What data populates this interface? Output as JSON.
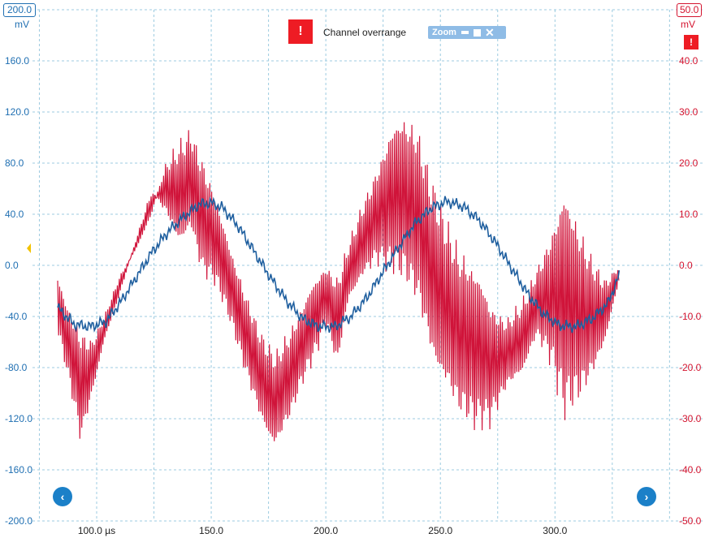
{
  "banner": {
    "message": "Channel overrange",
    "alert_symbol": "!"
  },
  "zoom": {
    "label": "Zoom"
  },
  "left_axis": {
    "scale_badge": "200.0",
    "unit": "mV"
  },
  "right_axis": {
    "scale_badge": "50.0",
    "unit": "mV",
    "warning_symbol": "!"
  },
  "nav": {
    "prev": "‹",
    "next": "›"
  },
  "colors": {
    "channel_a": "#1f5f9f",
    "channel_b": "#d0143a",
    "grid": "#9ccbe0"
  },
  "chart_data": {
    "type": "line",
    "x_unit": "µs",
    "x_ticks": [
      "100.0 µs",
      "150.0",
      "200.0",
      "250.0",
      "300.0"
    ],
    "x_tick_values": [
      100,
      150,
      200,
      250,
      300
    ],
    "xlim": [
      72,
      352
    ],
    "left_ticks": [
      "200.0",
      "160.0",
      "120.0",
      "80.0",
      "40.0",
      "0.0",
      "-40.0",
      "-80.0",
      "-120.0",
      "-160.0",
      "-200.0"
    ],
    "right_ticks": [
      "50.0",
      "40.0",
      "30.0",
      "20.0",
      "10.0",
      "0.0",
      "-10.0",
      "-20.0",
      "-30.0",
      "-40.0",
      "-50.0"
    ],
    "ylim_left": [
      -200,
      200
    ],
    "ylim_right": [
      -50,
      50
    ],
    "grid": true,
    "series": [
      {
        "channel": "A",
        "axis": "left",
        "color": "#1f5f9f",
        "points": [
          [
            83,
            -33
          ],
          [
            90,
            -46
          ],
          [
            97,
            -48
          ],
          [
            104,
            -44
          ],
          [
            110,
            -30
          ],
          [
            117,
            -10
          ],
          [
            124,
            10
          ],
          [
            131,
            26
          ],
          [
            138,
            38
          ],
          [
            145,
            48
          ],
          [
            150,
            49
          ],
          [
            155,
            45
          ],
          [
            162,
            30
          ],
          [
            169,
            10
          ],
          [
            176,
            -10
          ],
          [
            183,
            -28
          ],
          [
            190,
            -42
          ],
          [
            197,
            -48
          ],
          [
            204,
            -48
          ],
          [
            211,
            -40
          ],
          [
            218,
            -25
          ],
          [
            225,
            -5
          ],
          [
            232,
            15
          ],
          [
            239,
            33
          ],
          [
            246,
            45
          ],
          [
            253,
            50
          ],
          [
            260,
            46
          ],
          [
            267,
            35
          ],
          [
            274,
            18
          ],
          [
            281,
            -2
          ],
          [
            288,
            -22
          ],
          [
            295,
            -38
          ],
          [
            302,
            -47
          ],
          [
            309,
            -48
          ],
          [
            316,
            -42
          ],
          [
            323,
            -30
          ],
          [
            328,
            -8
          ]
        ]
      },
      {
        "channel": "B",
        "axis": "right",
        "color": "#d0143a",
        "envelope_top": [
          [
            83,
            -3
          ],
          [
            88,
            -9
          ],
          [
            93,
            -12
          ],
          [
            98,
            -14
          ],
          [
            103,
            -10
          ],
          [
            110,
            -2
          ],
          [
            117,
            3
          ],
          [
            124,
            10
          ],
          [
            130,
            20
          ],
          [
            136,
            25
          ],
          [
            141,
            28
          ],
          [
            146,
            22
          ],
          [
            152,
            13
          ],
          [
            158,
            3
          ],
          [
            165,
            -5
          ],
          [
            172,
            -12
          ],
          [
            178,
            -16
          ],
          [
            185,
            -12
          ],
          [
            190,
            -8
          ],
          [
            196,
            -3
          ],
          [
            200,
            0
          ],
          [
            205,
            -2
          ],
          [
            210,
            5
          ],
          [
            216,
            13
          ],
          [
            222,
            19
          ],
          [
            228,
            25
          ],
          [
            234,
            28
          ],
          [
            240,
            28
          ],
          [
            246,
            20
          ],
          [
            252,
            12
          ],
          [
            258,
            4
          ],
          [
            265,
            -2
          ],
          [
            272,
            -8
          ],
          [
            279,
            -10
          ],
          [
            286,
            -6
          ],
          [
            292,
            0
          ],
          [
            298,
            6
          ],
          [
            304,
            12
          ],
          [
            310,
            8
          ],
          [
            316,
            3
          ],
          [
            322,
            -2
          ],
          [
            328,
            0
          ]
        ],
        "envelope_bottom": [
          [
            83,
            -14
          ],
          [
            88,
            -24
          ],
          [
            93,
            -35
          ],
          [
            98,
            -25
          ],
          [
            103,
            -15
          ],
          [
            110,
            -6
          ],
          [
            117,
            5
          ],
          [
            124,
            15
          ],
          [
            130,
            10
          ],
          [
            136,
            5
          ],
          [
            141,
            8
          ],
          [
            146,
            -2
          ],
          [
            152,
            -5
          ],
          [
            158,
            -12
          ],
          [
            165,
            -22
          ],
          [
            172,
            -30
          ],
          [
            178,
            -35
          ],
          [
            185,
            -30
          ],
          [
            190,
            -24
          ],
          [
            196,
            -18
          ],
          [
            200,
            -12
          ],
          [
            205,
            -20
          ],
          [
            210,
            -6
          ],
          [
            216,
            -2
          ],
          [
            222,
            0
          ],
          [
            228,
            -3
          ],
          [
            234,
            -5
          ],
          [
            240,
            -8
          ],
          [
            246,
            -16
          ],
          [
            252,
            -22
          ],
          [
            258,
            -30
          ],
          [
            265,
            -34
          ],
          [
            272,
            -32
          ],
          [
            279,
            -24
          ],
          [
            286,
            -20
          ],
          [
            292,
            -14
          ],
          [
            298,
            -20
          ],
          [
            304,
            -33
          ],
          [
            310,
            -29
          ],
          [
            316,
            -22
          ],
          [
            322,
            -14
          ],
          [
            328,
            -3
          ]
        ]
      }
    ]
  }
}
